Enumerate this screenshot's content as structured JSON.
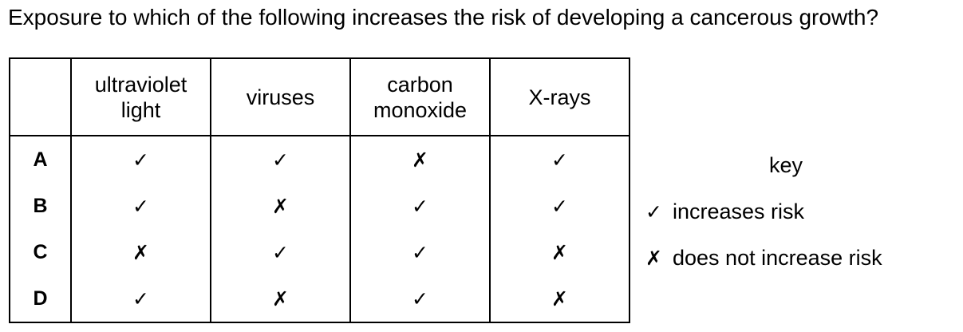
{
  "question": "Exposure to which of the following increases the risk of developing a cancerous growth?",
  "table": {
    "headers": [
      "",
      "ultraviolet\nlight",
      "viruses",
      "carbon\nmonoxide",
      "X-rays"
    ],
    "header_lines": [
      [],
      [
        "ultraviolet",
        "light"
      ],
      [
        "viruses"
      ],
      [
        "carbon",
        "monoxide"
      ],
      [
        "X-rays"
      ]
    ],
    "rows": [
      {
        "label": "A",
        "marks": [
          "✓",
          "✓",
          "✗",
          "✓"
        ]
      },
      {
        "label": "B",
        "marks": [
          "✓",
          "✗",
          "✓",
          "✓"
        ]
      },
      {
        "label": "C",
        "marks": [
          "✗",
          "✓",
          "✓",
          "✗"
        ]
      },
      {
        "label": "D",
        "marks": [
          "✓",
          "✗",
          "✓",
          "✗"
        ]
      }
    ]
  },
  "key": {
    "title": "key",
    "items": [
      {
        "symbol": "✓",
        "text": "increases risk"
      },
      {
        "symbol": "✗",
        "text": "does not increase risk"
      }
    ]
  }
}
